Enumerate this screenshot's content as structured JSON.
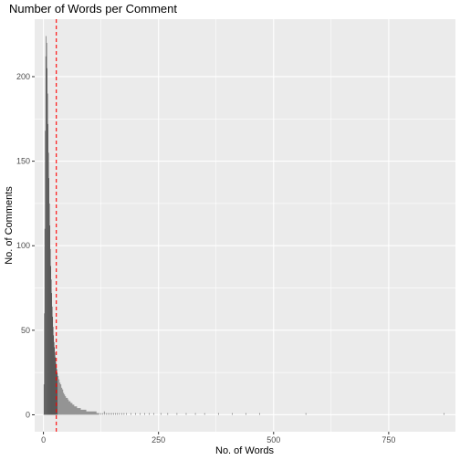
{
  "chart_data": {
    "type": "bar",
    "title": "Number of Words per Comment",
    "xlabel": "No. of Words",
    "ylabel": "No. of Comments",
    "xlim": [
      -19,
      895
    ],
    "ylim": [
      -10,
      234
    ],
    "x_ticks": [
      0,
      250,
      500,
      750
    ],
    "y_ticks": [
      0,
      50,
      100,
      150,
      200
    ],
    "grid": true,
    "panel_background": "#EBEBEB",
    "grid_color": "#FFFFFF",
    "bar_color": "#595959",
    "reference_line": {
      "x": 28,
      "color": "#FF0000",
      "style": "dashed"
    },
    "x": [
      1,
      2,
      3,
      4,
      5,
      6,
      7,
      8,
      9,
      10,
      11,
      12,
      13,
      14,
      15,
      16,
      17,
      18,
      19,
      20,
      21,
      22,
      23,
      24,
      25,
      26,
      27,
      28,
      29,
      30,
      32,
      34,
      36,
      38,
      40,
      42,
      44,
      46,
      48,
      50,
      52,
      54,
      56,
      58,
      60,
      62,
      64,
      66,
      68,
      70,
      72,
      74,
      76,
      78,
      80,
      82,
      84,
      86,
      88,
      90,
      92,
      94,
      96,
      98,
      100,
      102,
      104,
      106,
      108,
      110,
      112,
      114,
      116,
      118,
      120,
      124,
      128,
      132,
      136,
      140,
      144,
      148,
      152,
      156,
      160,
      165,
      170,
      175,
      180,
      190,
      200,
      210,
      220,
      230,
      240,
      255,
      270,
      290,
      310,
      330,
      350,
      380,
      410,
      440,
      470,
      570,
      870
    ],
    "values": [
      18,
      60,
      110,
      168,
      212,
      224,
      220,
      205,
      190,
      172,
      155,
      140,
      125,
      112,
      98,
      88,
      80,
      72,
      64,
      58,
      52,
      47,
      43,
      40,
      37,
      34,
      31,
      29,
      27,
      25,
      23,
      21,
      19,
      18,
      16,
      15,
      13,
      12,
      11,
      10,
      10,
      9,
      8,
      8,
      7,
      7,
      6,
      6,
      5,
      5,
      5,
      4,
      4,
      4,
      4,
      3,
      3,
      3,
      3,
      3,
      3,
      2,
      2,
      2,
      2,
      2,
      2,
      2,
      2,
      2,
      2,
      2,
      1,
      1,
      1,
      1,
      1,
      2,
      1,
      1,
      1,
      1,
      1,
      1,
      1,
      1,
      1,
      1,
      1,
      1,
      1,
      1,
      1,
      1,
      1,
      1,
      1,
      1,
      1,
      1,
      1,
      1,
      1,
      1,
      1,
      1,
      1
    ]
  }
}
